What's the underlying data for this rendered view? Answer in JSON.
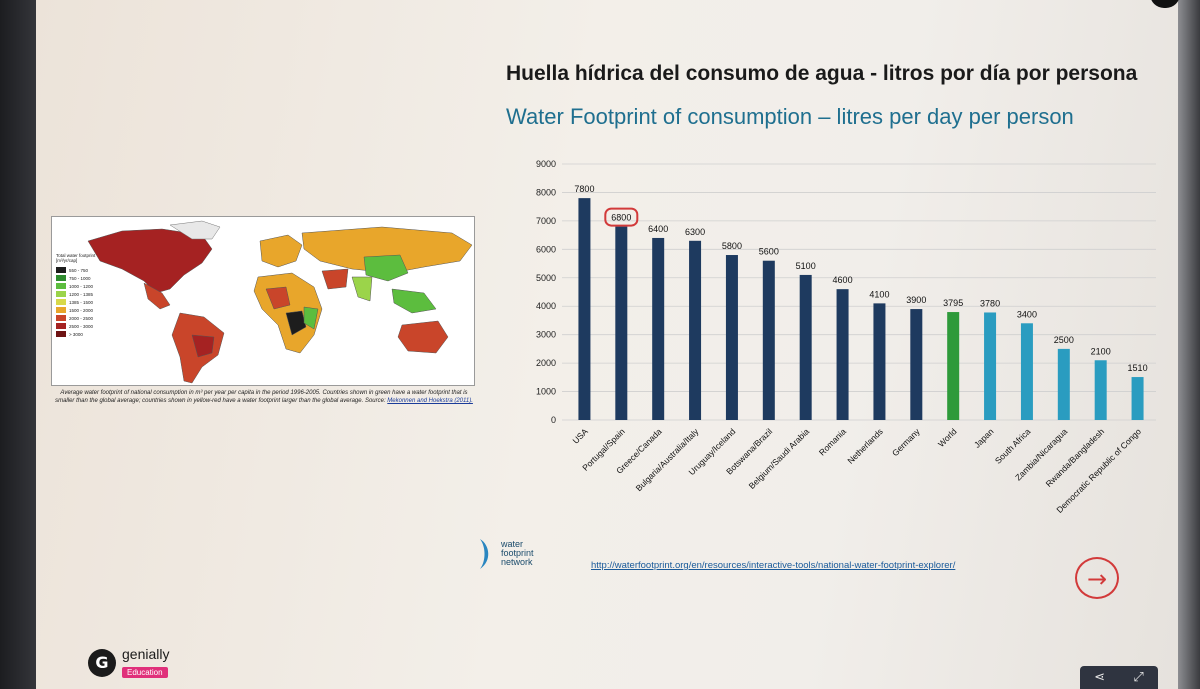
{
  "title_es": "Huella hídrica del consumo de agua - litros por día por persona",
  "title_en": "Water Footprint of consumption – litres per day per person",
  "map": {
    "legend_title": "Total water footprint [m³/yr/cap]",
    "legend_items": [
      {
        "label": "550 - 750",
        "color": "#1d1d1d"
      },
      {
        "label": "750 - 1000",
        "color": "#2e8b2e"
      },
      {
        "label": "1000 - 1200",
        "color": "#5cbd3e"
      },
      {
        "label": "1200 - 1385",
        "color": "#9bd44a"
      },
      {
        "label": "1385 - 1500",
        "color": "#d7d94a"
      },
      {
        "label": "1500 - 2000",
        "color": "#e8a62b"
      },
      {
        "label": "2000 - 2500",
        "color": "#c9452a"
      },
      {
        "label": "2500 - 3000",
        "color": "#a52222"
      },
      {
        "label": "> 3000",
        "color": "#6e1313"
      }
    ],
    "caption": "Average water footprint of national consumption in m³ per year per capita in the period 1996-2005. Countries shown in green have a water footprint that is smaller than the global average; countries shown in yellow-red have a water footprint larger than the global average. Source:",
    "source": "Mekonnen and Hoekstra (2011)."
  },
  "chart_data": {
    "type": "bar",
    "categories": [
      "USA",
      "Portugal/Spain",
      "Greece/Canada",
      "Bulgaria/Australia/Italy",
      "Uruguay/Iceland",
      "Botswana/Brazil",
      "Belgium/Saudi Arabia",
      "Romania",
      "Netherlands",
      "Germany",
      "World",
      "Japan",
      "South Africa",
      "Zambia/Nicaragua",
      "Rwanda/Bangladesh",
      "Democratic Republic of Congo"
    ],
    "values": [
      7800,
      6800,
      6400,
      6300,
      5800,
      5600,
      5100,
      4600,
      4100,
      3900,
      3795,
      3780,
      3400,
      2500,
      2100,
      1510
    ],
    "value_labels": [
      "7800",
      "6800",
      "6400",
      "6300",
      "5800",
      "5600",
      "5100",
      "4600",
      "4100",
      "3900",
      "3795",
      "3780",
      "3400",
      "2500",
      "2100",
      "1510"
    ],
    "bar_colors": [
      "#1e3a5f",
      "#1e3a5f",
      "#1e3a5f",
      "#1e3a5f",
      "#1e3a5f",
      "#1e3a5f",
      "#1e3a5f",
      "#1e3a5f",
      "#1e3a5f",
      "#1e3a5f",
      "#2e9a3a",
      "#2a9cc0",
      "#2a9cc0",
      "#2a9cc0",
      "#2a9cc0",
      "#2a9cc0"
    ],
    "highlight_index": 1,
    "highlight_color": "#d23a3a",
    "y_ticks": [
      "0",
      "1000",
      "2000",
      "3000",
      "4000",
      "5000",
      "6000",
      "7000",
      "8000",
      "9000"
    ],
    "ylim": [
      0,
      9000
    ],
    "grid": true
  },
  "logo_lines": [
    "water",
    "footprint",
    "network"
  ],
  "url": "http://waterfootprint.org/en/resources/interactive-tools/national-water-footprint-explorer/",
  "next_glyph": "→",
  "genially": {
    "glyph": "G",
    "name": "genially",
    "tag": "Education"
  },
  "toolbar": {
    "share_glyph": "⋖",
    "fullscreen_glyph": "⤢"
  }
}
